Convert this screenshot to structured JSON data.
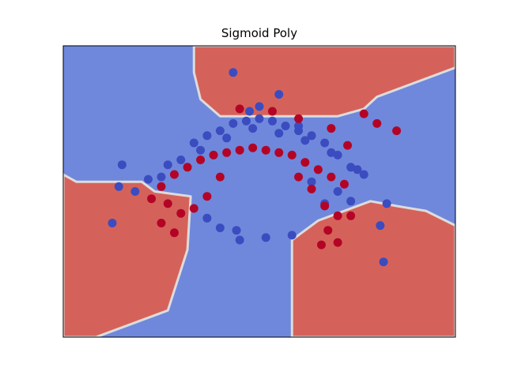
{
  "chart_data": {
    "type": "scatter",
    "title": "Sigmoid Poly",
    "xlabel": "",
    "ylabel": "",
    "xlim": [
      -3.0,
      3.0
    ],
    "ylim": [
      -3.0,
      3.0
    ],
    "grid": false,
    "ticks_visible": false,
    "background": "decision-regions",
    "colors": {
      "class_0_point": "#3b4cc0",
      "class_1_point": "#b40426",
      "class_0_region": "#6f88dc",
      "class_1_region": "#d5625a",
      "boundary_light": "#dddcdc"
    },
    "regions": {
      "class_1": [
        [
          [
            -1.0,
            3.0
          ],
          [
            3.0,
            3.0
          ],
          [
            3.0,
            2.55
          ],
          [
            1.8,
            1.95
          ],
          [
            1.6,
            1.7
          ],
          [
            1.2,
            1.55
          ],
          [
            -0.6,
            1.55
          ],
          [
            -0.9,
            1.9
          ],
          [
            -1.0,
            2.45
          ]
        ],
        [
          [
            -3.0,
            0.35
          ],
          [
            -2.8,
            0.2
          ],
          [
            -1.8,
            0.2
          ],
          [
            -1.6,
            0.0
          ],
          [
            -1.05,
            -0.1
          ],
          [
            -1.1,
            -1.2
          ],
          [
            -1.4,
            -2.45
          ],
          [
            -2.5,
            -3.0
          ],
          [
            -3.0,
            -3.0
          ]
        ],
        [
          [
            0.5,
            -1.0
          ],
          [
            0.5,
            -3.0
          ],
          [
            3.0,
            -3.0
          ],
          [
            3.0,
            -0.7
          ],
          [
            2.55,
            -0.4
          ],
          [
            2.1,
            -0.3
          ],
          [
            1.7,
            -0.2
          ],
          [
            0.9,
            -0.6
          ]
        ]
      ]
    },
    "series": [
      {
        "class": 0,
        "x": [
          -1.4,
          -1.0,
          -0.8,
          -0.6,
          -0.4,
          -0.2,
          0.0,
          0.2,
          0.4,
          0.6,
          0.8,
          1.0,
          1.2,
          1.4,
          1.6,
          -1.2,
          -0.9,
          -0.5,
          -0.1,
          0.3,
          0.7,
          1.1,
          1.5,
          -2.15,
          -1.9,
          -1.7,
          -1.5,
          -2.25,
          1.85,
          1.95,
          1.4,
          1.0,
          0.5,
          -0.35,
          -0.3,
          0.1,
          -0.6,
          -0.8,
          -2.1,
          -0.15,
          0.0,
          0.3,
          -0.4,
          0.6,
          0.8,
          1.2,
          1.9
        ],
        "y": [
          0.55,
          1.0,
          1.15,
          1.25,
          1.4,
          1.45,
          1.5,
          1.45,
          1.35,
          1.25,
          1.15,
          1.0,
          0.75,
          0.5,
          0.35,
          0.65,
          0.85,
          1.1,
          1.3,
          1.2,
          1.05,
          0.8,
          0.45,
          0.1,
          0.0,
          0.25,
          0.3,
          -0.65,
          -0.7,
          -0.25,
          -0.2,
          -0.25,
          -0.9,
          -0.8,
          -1.0,
          -0.95,
          -0.75,
          -0.55,
          0.55,
          1.65,
          1.75,
          2.0,
          2.45,
          1.35,
          0.2,
          0.0,
          -1.45
        ]
      },
      {
        "class": 1,
        "x": [
          -1.5,
          -1.3,
          -1.1,
          -0.9,
          -0.7,
          -0.5,
          -0.3,
          -0.1,
          0.1,
          0.3,
          0.5,
          0.7,
          0.9,
          1.1,
          1.3,
          -1.4,
          -1.2,
          -1.0,
          -0.8,
          -0.6,
          0.6,
          0.8,
          1.0,
          1.2,
          -1.3,
          -1.5,
          -1.65,
          1.05,
          1.2,
          1.4,
          1.6,
          1.8,
          2.1,
          0.95,
          1.35,
          -0.3,
          0.2,
          0.6,
          1.1
        ],
        "y": [
          0.1,
          0.35,
          0.5,
          0.65,
          0.75,
          0.8,
          0.85,
          0.9,
          0.85,
          0.8,
          0.75,
          0.6,
          0.45,
          0.3,
          0.15,
          -0.25,
          -0.45,
          -0.35,
          -0.1,
          0.3,
          0.3,
          0.05,
          -0.3,
          -0.5,
          -0.85,
          -0.65,
          -0.15,
          -0.8,
          -1.05,
          -0.5,
          1.6,
          1.4,
          1.25,
          -1.1,
          0.95,
          1.7,
          1.65,
          1.5,
          1.3
        ]
      }
    ]
  }
}
